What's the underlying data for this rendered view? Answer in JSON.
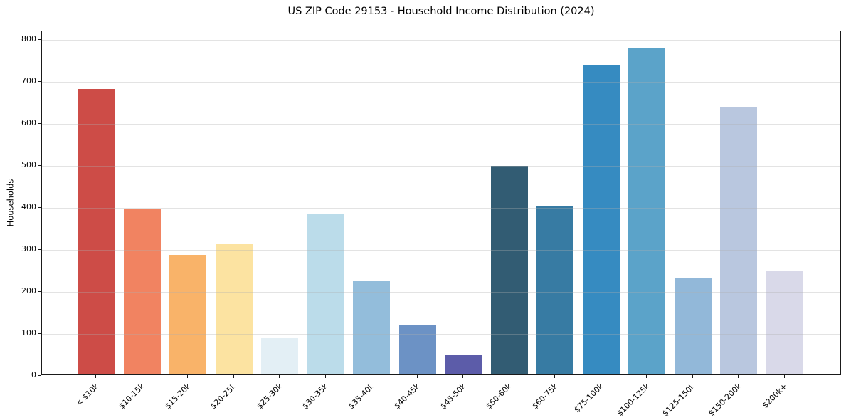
{
  "chart_data": {
    "type": "bar",
    "title": "US ZIP Code 29153 - Household Income Distribution (2024)",
    "xlabel": "",
    "ylabel": "Households",
    "categories": [
      "< $10k",
      "$10-15k",
      "$15-20k",
      "$20-25k",
      "$25-30k",
      "$30-35k",
      "$35-40k",
      "$40-45k",
      "$45-50k",
      "$50-60k",
      "$60-75k",
      "$75-100k",
      "$100-125k",
      "$125-150k",
      "$150-200k",
      "$200k+"
    ],
    "values": [
      680,
      395,
      285,
      310,
      86,
      381,
      222,
      117,
      46,
      497,
      401,
      735,
      778,
      229,
      637,
      246
    ],
    "bar_colors": [
      "#cd4c47",
      "#f18361",
      "#f9b369",
      "#fce3a1",
      "#e3eff5",
      "#bbdcea",
      "#93bddb",
      "#6c92c5",
      "#5c5ca9",
      "#325c73",
      "#377ba3",
      "#368bc1",
      "#5ba3c9",
      "#92b8d9",
      "#b9c7df",
      "#d9d9e9"
    ],
    "ylim": [
      0,
      820
    ],
    "yticks": [
      0,
      100,
      200,
      300,
      400,
      500,
      600,
      700,
      800
    ],
    "grid": "horizontal-above-bars",
    "legend": "none"
  },
  "colors": {
    "background": "#ffffff",
    "spine": "#1a1a1a",
    "grid": "#e3e3e3",
    "text": "#000000"
  }
}
